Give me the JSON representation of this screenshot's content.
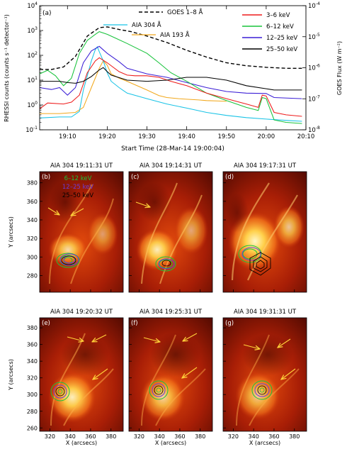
{
  "chart_data": [
    {
      "type": "line",
      "panel": "(a)",
      "xlabel": "Start Time (28-Mar-14 19:00:04)",
      "ylabel_left": "RHESSI counts (counts s⁻¹ detector⁻¹)",
      "ylabel_right": "GOES Flux (W m⁻²)",
      "x_unit": "minutes after 19:00",
      "xlim": [
        3,
        70
      ],
      "ylim": [
        0.1,
        10000
      ],
      "y_scale": "log",
      "ylim_right": [
        1e-08,
        0.0001
      ],
      "x_ticks": [
        {
          "v": 10,
          "t": "19:10"
        },
        {
          "v": 20,
          "t": "19:20"
        },
        {
          "v": 30,
          "t": "19:30"
        },
        {
          "v": 40,
          "t": "19:40"
        },
        {
          "v": 50,
          "t": "19:50"
        },
        {
          "v": 60,
          "t": "20:00"
        },
        {
          "v": 70,
          "t": "20:10"
        }
      ],
      "y_ticks_left": [
        {
          "e": -1,
          "t": "10-1"
        },
        {
          "e": 0,
          "t": "100"
        },
        {
          "e": 1,
          "t": "101"
        },
        {
          "e": 2,
          "t": "102"
        },
        {
          "e": 3,
          "t": "103"
        },
        {
          "e": 4,
          "t": "104"
        }
      ],
      "y_ticks_right": [
        {
          "e": -8,
          "t": "10-8"
        },
        {
          "e": -7,
          "t": "10-7"
        },
        {
          "e": -6,
          "t": "10-6"
        },
        {
          "e": -5,
          "t": "10-5"
        },
        {
          "e": -4,
          "t": "10-4"
        }
      ],
      "legend_top": [
        {
          "name": "GOES 1–8 Å",
          "color": "#000000",
          "dash": true
        },
        {
          "name": "AIA 304 Å",
          "color": "#19c3e6",
          "dash": false
        },
        {
          "name": "AIA 193 Å",
          "color": "#f2a81c",
          "dash": false
        }
      ],
      "legend_right": [
        {
          "name": "3–6 keV",
          "color": "#ee1c1c"
        },
        {
          "name": "6–12 keV",
          "color": "#19c33c"
        },
        {
          "name": "12–25 keV",
          "color": "#3b1fd6"
        },
        {
          "name": "25–50 keV",
          "color": "#000000"
        }
      ],
      "series": [
        {
          "name": "GOES 1–8 Å",
          "color": "#000000",
          "dash": true,
          "x": [
            3,
            6,
            9,
            12,
            15,
            18,
            20,
            23,
            26,
            30,
            35,
            40,
            45,
            50,
            55,
            60,
            65,
            69
          ],
          "y": [
            27,
            27,
            34,
            90,
            600,
            1300,
            1400,
            1100,
            900,
            600,
            330,
            160,
            85,
            50,
            38,
            33,
            30,
            30
          ]
        },
        {
          "name": "AIA 304 Å",
          "color": "#19c3e6",
          "dash": false,
          "x": [
            3,
            8,
            11,
            13,
            14,
            15,
            16,
            17,
            17.5,
            18,
            19,
            20,
            21,
            23,
            25,
            30,
            35,
            40,
            45,
            50,
            55,
            60,
            65,
            69
          ],
          "y": [
            0.3,
            0.33,
            0.33,
            0.55,
            4,
            15,
            60,
            170,
            220,
            140,
            60,
            20,
            9,
            5,
            3,
            1.8,
            1.1,
            0.75,
            0.5,
            0.38,
            0.31,
            0.27,
            0.24,
            0.22
          ]
        },
        {
          "name": "AIA 193 Å",
          "color": "#f2a81c",
          "dash": false,
          "x": [
            3,
            8,
            12,
            14,
            16,
            18,
            19,
            20,
            21,
            23,
            25,
            30,
            33,
            35,
            38,
            40,
            43,
            45,
            48,
            50
          ],
          "y": [
            0.45,
            0.45,
            0.5,
            0.8,
            5,
            30,
            60,
            40,
            18,
            12,
            9,
            4,
            2.4,
            2,
            1.8,
            1.7,
            1.6,
            1.5,
            1.45,
            1.4
          ]
        },
        {
          "name": "3–6 keV",
          "color": "#ee1c1c",
          "dash": false,
          "x": [
            3,
            5,
            9,
            11,
            13,
            15,
            17,
            18,
            20,
            23,
            25,
            27,
            30,
            33,
            36,
            40,
            45,
            50,
            55,
            58,
            59,
            60,
            62,
            65,
            69
          ],
          "y": [
            0.7,
            1.2,
            1.1,
            1.3,
            2.5,
            20,
            60,
            80,
            50,
            22,
            16,
            15,
            15,
            13,
            9,
            6,
            3,
            1.8,
            1.1,
            0.8,
            2.5,
            2.3,
            0.5,
            0.4,
            0.35
          ]
        },
        {
          "name": "6–12 keV",
          "color": "#19c33c",
          "dash": false,
          "x": [
            3,
            5,
            7,
            9,
            11,
            13,
            15,
            17,
            18,
            20,
            22,
            25,
            30,
            33,
            36,
            40,
            45,
            50,
            55,
            58,
            59,
            60,
            62,
            65,
            69
          ],
          "y": [
            18,
            25,
            15,
            6,
            12,
            120,
            400,
            700,
            900,
            700,
            500,
            300,
            120,
            50,
            20,
            9,
            3,
            1.5,
            0.8,
            0.6,
            2,
            1.8,
            0.25,
            0.2,
            0.18
          ]
        },
        {
          "name": "12–25 keV",
          "color": "#3b1fd6",
          "dash": false,
          "x": [
            3,
            6,
            8,
            10,
            12,
            14,
            16,
            18,
            20,
            23,
            25,
            30,
            35,
            40,
            45,
            50,
            55,
            60,
            62,
            69
          ],
          "y": [
            5,
            4.2,
            5,
            2.5,
            5,
            50,
            150,
            230,
            120,
            55,
            30,
            18,
            13,
            8,
            5,
            3.5,
            3,
            2.9,
            2,
            1.8
          ]
        },
        {
          "name": "25–50 keV",
          "color": "#000000",
          "dash": false,
          "x": [
            3,
            8,
            10,
            12,
            14,
            16,
            18,
            19,
            20,
            21,
            25,
            30,
            35,
            40,
            45,
            50,
            55,
            60,
            62,
            69
          ],
          "y": [
            9,
            9,
            8,
            7.5,
            9,
            14,
            26,
            32,
            22,
            16,
            10,
            9,
            10,
            13,
            13,
            10,
            6,
            4.5,
            4,
            4
          ]
        }
      ]
    }
  ],
  "image_panels": [
    {
      "id": "b",
      "label": "(b)",
      "title": "AIA 304  19:11:31  UT",
      "legend": [
        {
          "t": "6–12 keV",
          "c": "#19c33c"
        },
        {
          "t": "12–25 keV",
          "c": "#6a3bd6"
        },
        {
          "t": "25–50 keV",
          "c": "#000000"
        }
      ]
    },
    {
      "id": "c",
      "label": "(c)",
      "title": "AIA 304  19:14:31  UT"
    },
    {
      "id": "d",
      "label": "(d)",
      "title": "AIA 304  19:17:31  UT"
    },
    {
      "id": "e",
      "label": "(e)",
      "title": "AIA 304  19:20:32  UT"
    },
    {
      "id": "f",
      "label": "(f)",
      "title": "AIA 304  19:25:31  UT"
    },
    {
      "id": "g",
      "label": "(g)",
      "title": "AIA 304  19:31:31  UT"
    }
  ],
  "image_axes": {
    "xlabel": "X (arcsecs)",
    "ylabel": "Y (arcsecs)",
    "x_ticks": [
      320,
      340,
      360,
      380
    ],
    "y_ticks_top": [
      280,
      300,
      320,
      340,
      360,
      380
    ],
    "y_ticks_bottom": [
      260,
      280,
      300,
      320,
      340,
      360,
      380
    ],
    "xlim": [
      310,
      392
    ],
    "ylim_top": [
      262,
      392
    ],
    "ylim_bottom": [
      256,
      392
    ]
  }
}
